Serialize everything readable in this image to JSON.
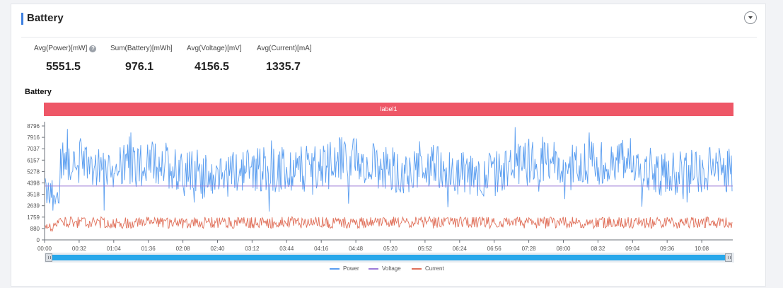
{
  "header": {
    "title": "Battery"
  },
  "stats": [
    {
      "label": "Avg(Power)[mW]",
      "value": "5551.5",
      "help": "?"
    },
    {
      "label": "Sum(Battery)[mWh]",
      "value": "976.1"
    },
    {
      "label": "Avg(Voltage)[mV]",
      "value": "4156.5"
    },
    {
      "label": "Avg(Current)[mA]",
      "value": "1335.7"
    }
  ],
  "chart": {
    "title": "Battery",
    "label_bar": "label1",
    "colors": {
      "power": "#5b9ef0",
      "voltage": "#9e7cd8",
      "current": "#e0705a",
      "label": "#ee5767"
    }
  },
  "chart_data": {
    "type": "line",
    "title": "Battery",
    "y_ticks": [
      0,
      880,
      1759,
      2639,
      3518,
      4398,
      5278,
      6157,
      7037,
      7916,
      8796
    ],
    "ylim": [
      0,
      8796
    ],
    "x_ticks": [
      "00:00",
      "00:32",
      "01:04",
      "01:36",
      "02:08",
      "02:40",
      "03:12",
      "03:44",
      "04:16",
      "04:48",
      "05:20",
      "05:52",
      "06:24",
      "06:56",
      "07:28",
      "08:00",
      "08:32",
      "09:04",
      "09:36",
      "10:08"
    ],
    "series": [
      {
        "name": "Power",
        "approx_mean": 5551.5,
        "approx_min": 2000,
        "approx_max": 8700
      },
      {
        "name": "Voltage",
        "approx_mean": 4156.5
      },
      {
        "name": "Current",
        "approx_mean": 1335.7,
        "approx_min": 600,
        "approx_max": 2100
      }
    ],
    "legend": "bottom",
    "grid": false
  }
}
